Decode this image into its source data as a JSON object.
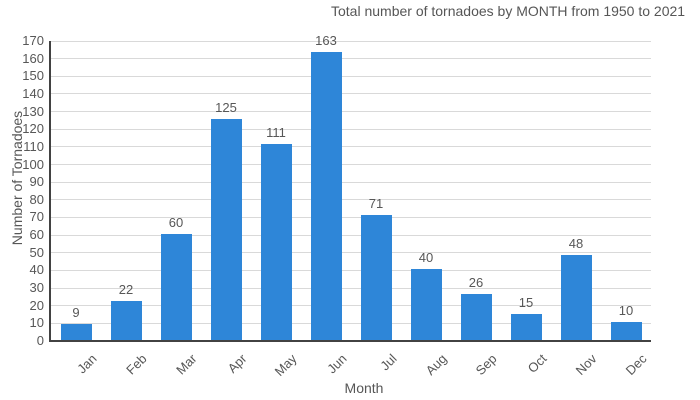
{
  "chart_data": {
    "type": "bar",
    "title": "Total number of tornadoes by MONTH from 1950 to 2021",
    "xlabel": "Month",
    "ylabel": "Number of Tornadoes",
    "categories": [
      "Jan",
      "Feb",
      "Mar",
      "Apr",
      "May",
      "Jun",
      "Jul",
      "Aug",
      "Sep",
      "Oct",
      "Nov",
      "Dec"
    ],
    "values": [
      9,
      22,
      60,
      125,
      111,
      163,
      71,
      40,
      26,
      15,
      48,
      10
    ],
    "ylim": [
      0,
      170
    ],
    "ytick_step": 10,
    "grid": true,
    "legend": "none",
    "value_labels_shown": true,
    "bar_color": "#2e86d8"
  },
  "colors": {
    "bar": "#2e86d8",
    "gridline": "#d9d9d9",
    "axis": "#424242",
    "text": "#575757"
  }
}
